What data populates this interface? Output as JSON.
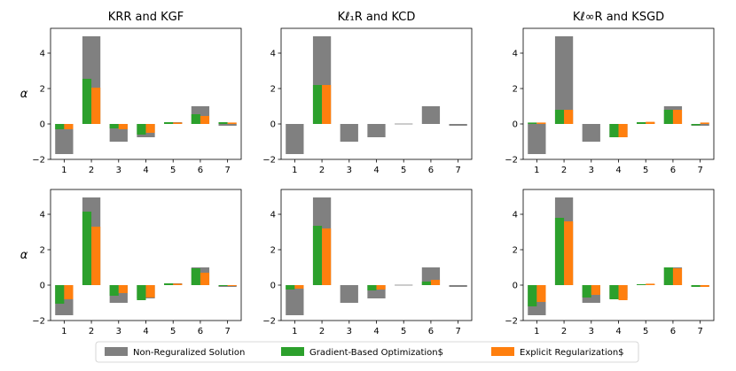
{
  "chart_data": [
    {
      "type": "bar",
      "title": "KRR and KGF",
      "ylabel": "α",
      "categories": [
        "1",
        "2",
        "3",
        "4",
        "5",
        "6",
        "7"
      ],
      "ylim": [
        -2,
        5.4
      ],
      "yticks": [
        "−2",
        "0",
        "2",
        "4"
      ],
      "series": [
        {
          "name": "Non-Reguralized Solution",
          "values": [
            -1.7,
            4.95,
            -1.0,
            -0.75,
            0.1,
            1.0,
            -0.1
          ]
        },
        {
          "name": "Gradient-Based Optimization$",
          "values": [
            -0.3,
            2.55,
            -0.25,
            -0.6,
            0.1,
            0.55,
            0.1
          ]
        },
        {
          "name": "Explicit Regularization$",
          "values": [
            -0.3,
            2.05,
            -0.3,
            -0.5,
            0.08,
            0.45,
            0.08
          ]
        }
      ]
    },
    {
      "type": "bar",
      "title": "Kℓ₁R and KCD",
      "ylabel": "",
      "categories": [
        "1",
        "2",
        "3",
        "4",
        "5",
        "6",
        "7"
      ],
      "ylim": [
        -2,
        5.4
      ],
      "yticks": [
        "−2",
        "0",
        "2",
        "4"
      ],
      "series": [
        {
          "name": "Non-Reguralized Solution",
          "values": [
            -1.7,
            4.95,
            -1.0,
            -0.75,
            0.02,
            1.0,
            -0.1
          ]
        },
        {
          "name": "Gradient-Based Optimization$",
          "values": [
            0,
            2.2,
            0,
            0,
            0,
            0,
            0
          ]
        },
        {
          "name": "Explicit Regularization$",
          "values": [
            0,
            2.2,
            0,
            0,
            0,
            0,
            0
          ]
        }
      ]
    },
    {
      "type": "bar",
      "title": "Kℓ∞R and KSGD",
      "ylabel": "",
      "categories": [
        "1",
        "2",
        "3",
        "4",
        "5",
        "6",
        "7"
      ],
      "ylim": [
        -2,
        5.4
      ],
      "yticks": [
        "−2",
        "0",
        "2",
        "4"
      ],
      "series": [
        {
          "name": "Non-Reguralized Solution",
          "values": [
            -1.7,
            4.95,
            -1.0,
            -0.75,
            0.1,
            1.0,
            -0.1
          ]
        },
        {
          "name": "Gradient-Based Optimization$",
          "values": [
            0.08,
            0.8,
            0,
            -0.75,
            0.1,
            0.8,
            -0.08
          ]
        },
        {
          "name": "Explicit Regularization$",
          "values": [
            0.08,
            0.8,
            0,
            -0.75,
            0.12,
            0.8,
            0.08
          ]
        }
      ]
    },
    {
      "type": "bar",
      "title": "",
      "ylabel": "α",
      "categories": [
        "1",
        "2",
        "3",
        "4",
        "5",
        "6",
        "7"
      ],
      "ylim": [
        -2,
        5.4
      ],
      "yticks": [
        "−2",
        "0",
        "2",
        "4"
      ],
      "series": [
        {
          "name": "Non-Reguralized Solution",
          "values": [
            -1.7,
            4.95,
            -1.0,
            -0.75,
            0.1,
            1.0,
            -0.1
          ]
        },
        {
          "name": "Gradient-Based Optimization$",
          "values": [
            -1.05,
            4.15,
            -0.6,
            -0.85,
            0.1,
            0.95,
            -0.05
          ]
        },
        {
          "name": "Explicit Regularization$",
          "values": [
            -0.8,
            3.3,
            -0.45,
            -0.7,
            0.08,
            0.7,
            -0.05
          ]
        }
      ]
    },
    {
      "type": "bar",
      "title": "",
      "ylabel": "",
      "categories": [
        "1",
        "2",
        "3",
        "4",
        "5",
        "6",
        "7"
      ],
      "ylim": [
        -2,
        5.4
      ],
      "yticks": [
        "−2",
        "0",
        "2",
        "4"
      ],
      "series": [
        {
          "name": "Non-Reguralized Solution",
          "values": [
            -1.7,
            4.95,
            -1.0,
            -0.75,
            0.02,
            1.0,
            -0.1
          ]
        },
        {
          "name": "Gradient-Based Optimization$",
          "values": [
            -0.25,
            3.35,
            0,
            -0.3,
            0,
            0.2,
            0
          ]
        },
        {
          "name": "Explicit Regularization$",
          "values": [
            -0.2,
            3.2,
            0,
            -0.25,
            0,
            0.3,
            0
          ]
        }
      ]
    },
    {
      "type": "bar",
      "title": "",
      "ylabel": "",
      "categories": [
        "1",
        "2",
        "3",
        "4",
        "5",
        "6",
        "7"
      ],
      "ylim": [
        -2,
        5.4
      ],
      "yticks": [
        "−2",
        "0",
        "2",
        "4"
      ],
      "series": [
        {
          "name": "Non-Reguralized Solution",
          "values": [
            -1.7,
            4.95,
            -1.0,
            -0.75,
            0.05,
            1.0,
            -0.1
          ]
        },
        {
          "name": "Gradient-Based Optimization$",
          "values": [
            -1.2,
            3.8,
            -0.7,
            -0.8,
            0.05,
            1.0,
            -0.1
          ]
        },
        {
          "name": "Explicit Regularization$",
          "values": [
            -0.95,
            3.6,
            -0.55,
            -0.85,
            0.08,
            0.95,
            -0.1
          ]
        }
      ]
    }
  ],
  "legend": {
    "placement": "bottom-center",
    "items": [
      {
        "label": "Non-Reguralized Solution",
        "color": "#808080"
      },
      {
        "label": "Gradient-Based Optimization$",
        "color": "#2ca02c"
      },
      {
        "label": "Explicit Regularization$",
        "color": "#ff7f0e"
      }
    ]
  },
  "colors": {
    "gray": "#808080",
    "green": "#2ca02c",
    "orange": "#ff7f0e"
  }
}
